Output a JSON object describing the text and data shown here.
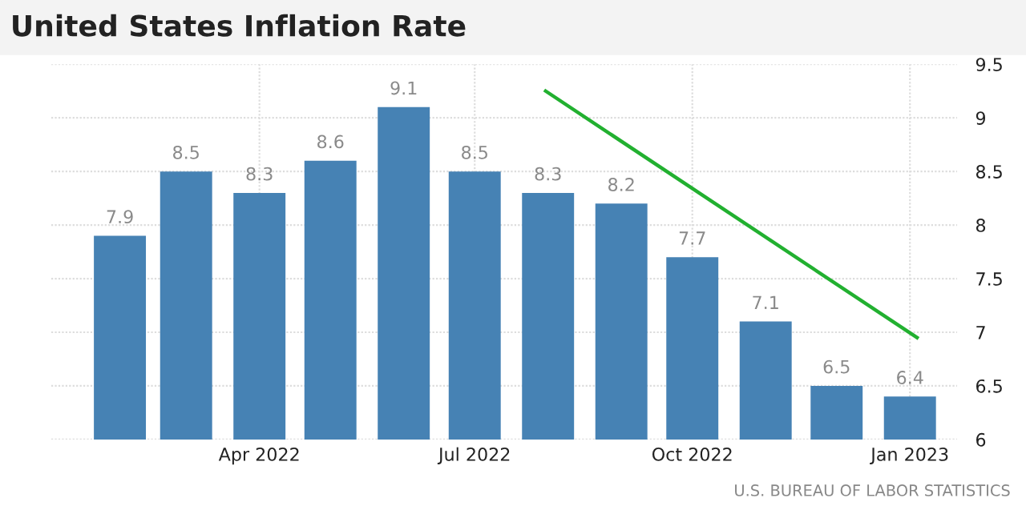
{
  "chart_data": {
    "type": "bar",
    "title": "United States Inflation Rate",
    "x": [
      "2022-02",
      "2022-03",
      "2022-04",
      "2022-05",
      "2022-06",
      "2022-07",
      "2022-08",
      "2022-09",
      "2022-10",
      "2022-11",
      "2022-12",
      "2023-01"
    ],
    "series": [
      {
        "color": "#4682b4",
        "values": [
          7.9,
          8.5,
          8.3,
          8.6,
          9.1,
          8.5,
          8.3,
          8.2,
          7.7,
          7.1,
          6.5,
          6.4
        ],
        "value_labels": [
          "7.9",
          "8.5",
          "8.3",
          "8.6",
          "9.1",
          "8.5",
          "8.3",
          "8.2",
          "7.7",
          "7.1",
          "6.5",
          "6.4"
        ]
      },
      {
        "type": "line",
        "color": "#22b030",
        "x": [
          "2022-07-31",
          "2023-01-04"
        ],
        "values": [
          9.25,
          6.95
        ]
      }
    ],
    "xlim": [
      "2022-01-03",
      "2023-01-21"
    ],
    "xticks": [
      {
        "value": "2022-04",
        "label": "Apr 2022"
      },
      {
        "value": "2022-07",
        "label": "Jul 2022"
      },
      {
        "value": "2022-10",
        "label": "Oct 2022"
      },
      {
        "value": "2023-01",
        "label": "Jan 2023"
      }
    ],
    "ylim": [
      6,
      9.5
    ],
    "yticks": [
      6,
      6.5,
      7,
      7.5,
      8,
      8.5,
      9,
      9.5
    ],
    "grid": true,
    "annotations": [
      "U.S. BUREAU OF LABOR STATISTICS"
    ]
  }
}
